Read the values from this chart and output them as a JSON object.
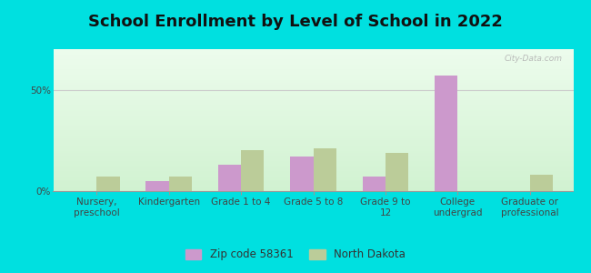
{
  "title": "School Enrollment by Level of School in 2022",
  "categories": [
    "Nursery,\npreschool",
    "Kindergarten",
    "Grade 1 to 4",
    "Grade 5 to 8",
    "Grade 9 to\n12",
    "College\nundergrad",
    "Graduate or\nprofessional"
  ],
  "zip_values": [
    0,
    5,
    13,
    17,
    7,
    57,
    0
  ],
  "nd_values": [
    7,
    7,
    20,
    21,
    19,
    0,
    8
  ],
  "zip_color": "#cc99cc",
  "nd_color": "#bbcc99",
  "background_color": "#00e0e0",
  "ylim": [
    0,
    70
  ],
  "yticks": [
    0,
    50
  ],
  "ytick_labels": [
    "0%",
    "50%"
  ],
  "bar_width": 0.32,
  "legend_zip": "Zip code 58361",
  "legend_nd": "North Dakota",
  "title_fontsize": 13,
  "axis_fontsize": 7.5,
  "legend_fontsize": 8.5,
  "watermark": "City-Data.com"
}
